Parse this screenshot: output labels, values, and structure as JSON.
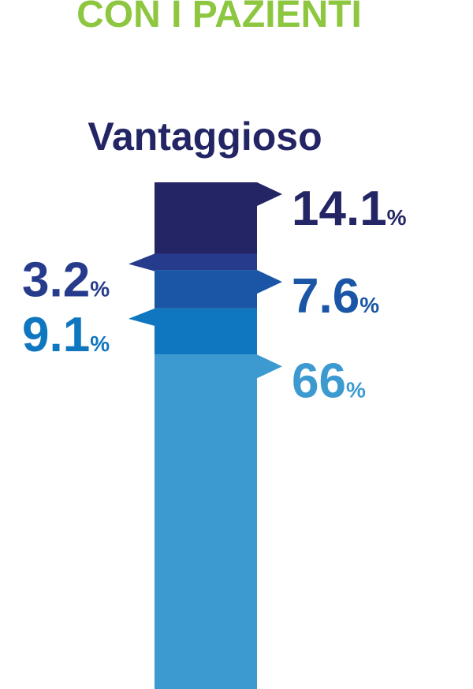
{
  "chart_data": {
    "type": "bar",
    "stacked": true,
    "title": "CON I PAZIENTI",
    "categories": [
      "Vantaggioso"
    ],
    "unit": "%",
    "ylim": [
      0,
      100
    ],
    "series": [
      {
        "color": "#232565",
        "values": [
          14.1
        ]
      },
      {
        "color": "#263b8c",
        "values": [
          3.2
        ]
      },
      {
        "color": "#1a56a5",
        "values": [
          7.6
        ]
      },
      {
        "color": "#0f77bf",
        "values": [
          9.1
        ]
      },
      {
        "color": "#3c9ad1",
        "values": [
          66
        ]
      }
    ]
  }
}
